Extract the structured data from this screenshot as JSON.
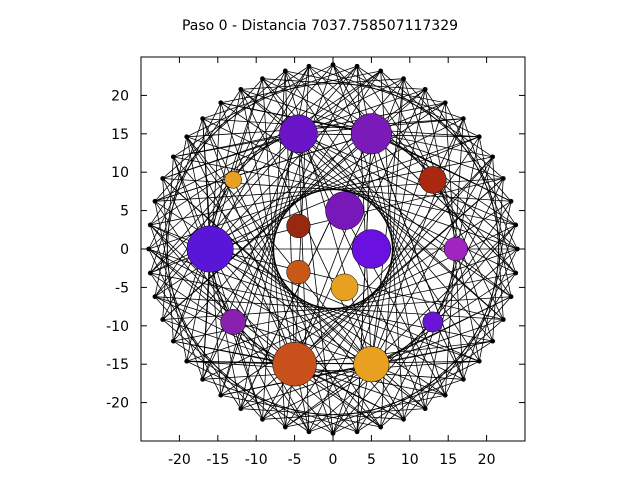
{
  "chart_data": {
    "type": "scatter",
    "title": "Paso 0 - Distancia 7037.758507117329",
    "xlabel": "",
    "ylabel": "",
    "xlim": [
      -25,
      25
    ],
    "ylim": [
      -25,
      25
    ],
    "xticks": [
      -20,
      -15,
      -10,
      -5,
      0,
      5,
      10,
      15,
      20
    ],
    "yticks": [
      -20,
      -15,
      -10,
      -5,
      0,
      5,
      10,
      15,
      20
    ],
    "grid": false,
    "outer_ring": {
      "radius": 24,
      "count": 48,
      "marker_color": "#000000"
    },
    "hubs": [
      {
        "x": -16,
        "y": 0,
        "size": 5.5,
        "color": "#5a16d8"
      },
      {
        "x": -4.5,
        "y": 15,
        "size": 4.5,
        "color": "#6a14c8"
      },
      {
        "x": 5,
        "y": 15,
        "size": 4.8,
        "color": "#7a1ab8"
      },
      {
        "x": -5,
        "y": -15,
        "size": 5.2,
        "color": "#c8501a"
      },
      {
        "x": 5,
        "y": -15,
        "size": 4.2,
        "color": "#e8a020"
      }
    ],
    "circles": [
      {
        "x": -13,
        "y": 9,
        "size": 2.0,
        "color": "#e8a020"
      },
      {
        "x": 13,
        "y": 9,
        "size": 3.2,
        "color": "#a82810"
      },
      {
        "x": 1.5,
        "y": 5,
        "size": 4.5,
        "color": "#7818b8"
      },
      {
        "x": -4.5,
        "y": 3,
        "size": 2.8,
        "color": "#982810"
      },
      {
        "x": 5,
        "y": 0,
        "size": 4.6,
        "color": "#6a10e0"
      },
      {
        "x": 16,
        "y": 0,
        "size": 2.8,
        "color": "#a024c0"
      },
      {
        "x": -4.5,
        "y": -3,
        "size": 2.8,
        "color": "#c85818"
      },
      {
        "x": 1.5,
        "y": -5,
        "size": 3.2,
        "color": "#e8a020"
      },
      {
        "x": -13,
        "y": -9.5,
        "size": 3.0,
        "color": "#8820b0"
      },
      {
        "x": 13,
        "y": -9.5,
        "size": 2.4,
        "color": "#6a14d8"
      }
    ]
  }
}
